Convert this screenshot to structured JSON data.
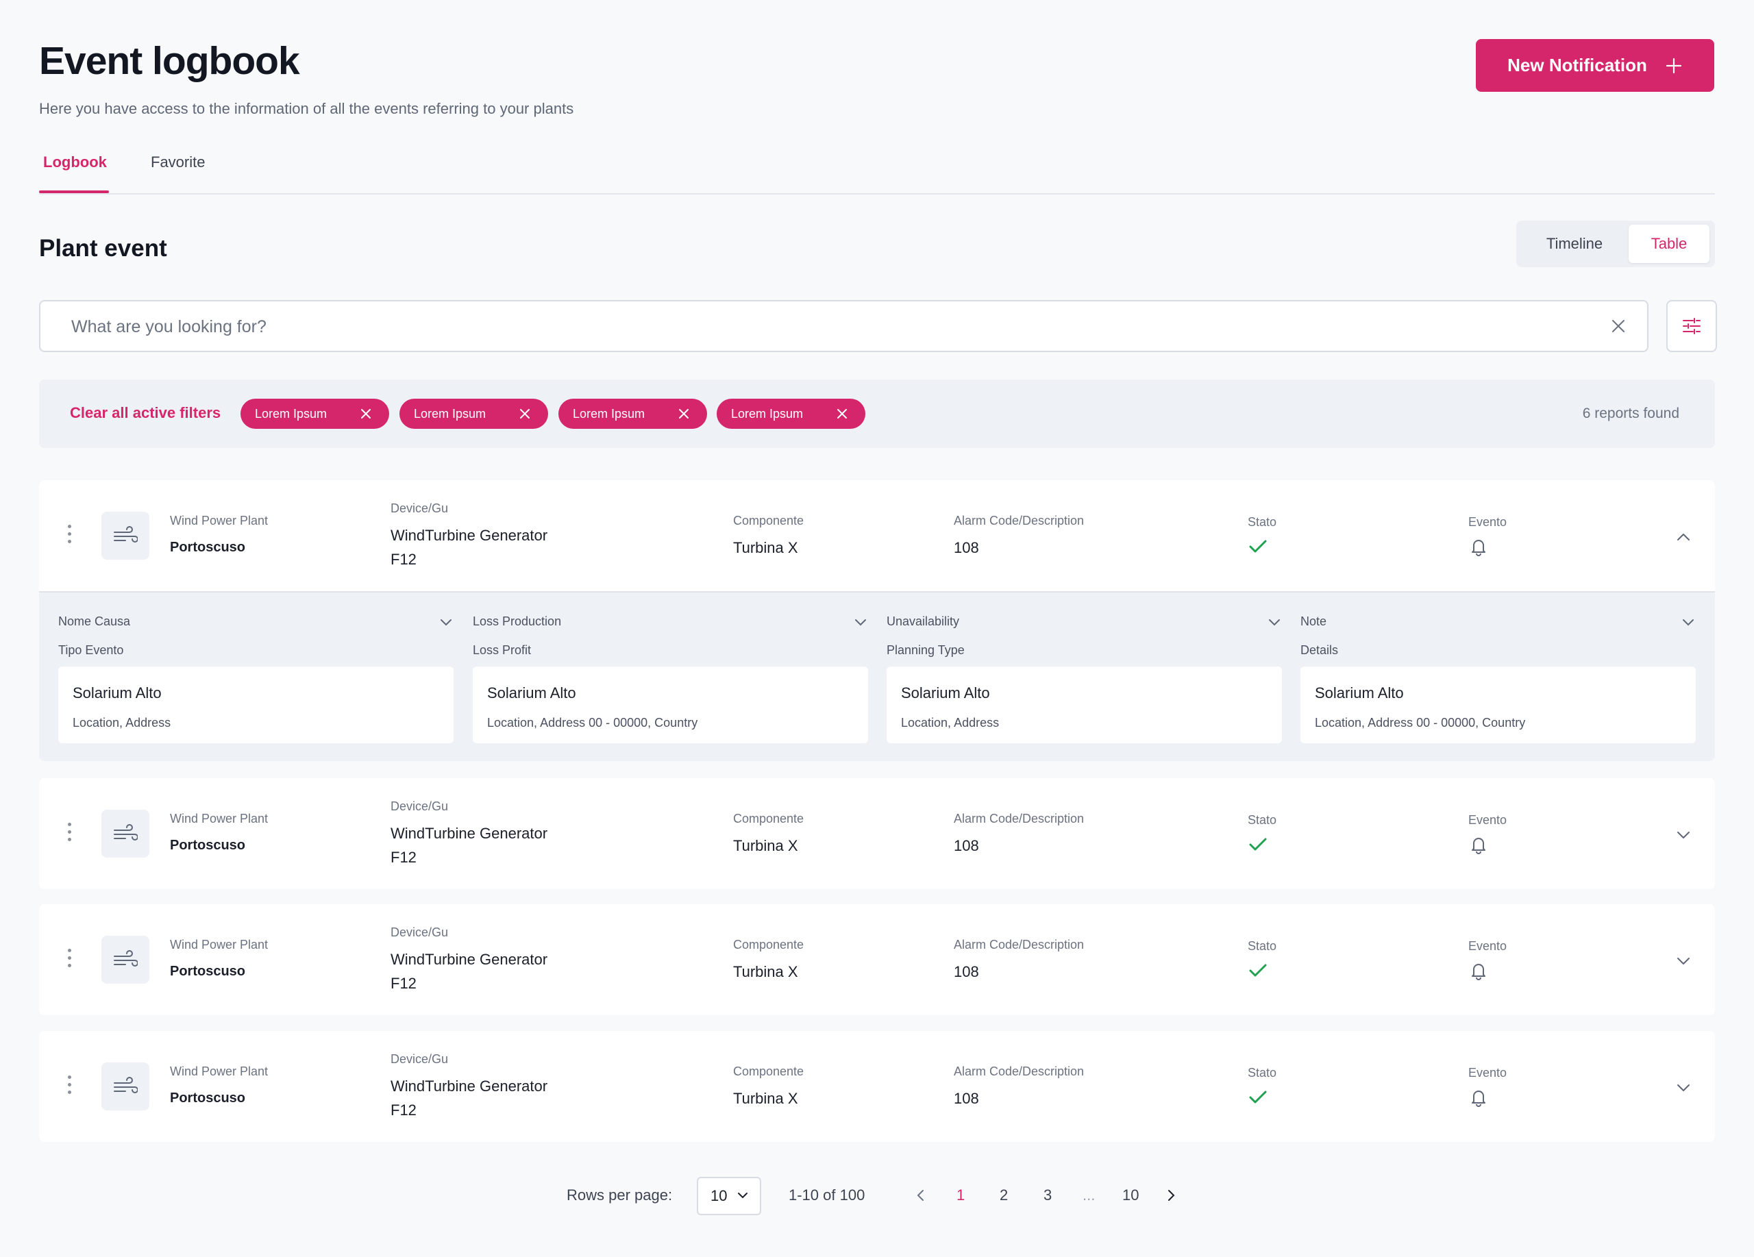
{
  "header": {
    "title": "Event logbook",
    "subtitle": "Here you have access to the information of all the events referring to your plants",
    "new_button_label": "New Notification"
  },
  "tabs": [
    {
      "label": "Logbook",
      "active": true
    },
    {
      "label": "Favorite",
      "active": false
    }
  ],
  "section": {
    "title": "Plant event",
    "view_toggle": [
      {
        "label": "Timeline",
        "active": false
      },
      {
        "label": "Table",
        "active": true
      }
    ]
  },
  "search": {
    "placeholder": "What are you looking for?",
    "value": ""
  },
  "filters": {
    "clear_label": "Clear all active filters",
    "chips": [
      "Lorem Ipsum",
      "Lorem Ipsum",
      "Lorem Ipsum",
      "Lorem Ipsum"
    ],
    "results_text": "6 reports found"
  },
  "columns": {
    "plant": "Wind Power Plant",
    "device": "Device/Gu",
    "component": "Componente",
    "alarm": "Alarm Code/Description",
    "stato": "Stato",
    "evento": "Evento"
  },
  "events": [
    {
      "plant": "Portoscuso",
      "device": "WindTurbine Generator",
      "device_code": "F12",
      "component": "Turbina X",
      "alarm": "108",
      "expanded": true
    },
    {
      "plant": "Portoscuso",
      "device": "WindTurbine Generator",
      "device_code": "F12",
      "component": "Turbina X",
      "alarm": "108",
      "expanded": false
    },
    {
      "plant": "Portoscuso",
      "device": "WindTurbine Generator",
      "device_code": "F12",
      "component": "Turbina X",
      "alarm": "108",
      "expanded": false
    },
    {
      "plant": "Portoscuso",
      "device": "WindTurbine Generator",
      "device_code": "F12",
      "component": "Turbina X",
      "alarm": "108",
      "expanded": false
    }
  ],
  "details": [
    {
      "header": "Nome Causa",
      "sub": "Tipo Evento",
      "title": "Solarium Alto",
      "text": "Location, Address"
    },
    {
      "header": "Loss Production",
      "sub": "Loss Profit",
      "title": "Solarium Alto",
      "text": "Location, Address 00 - 00000, Country"
    },
    {
      "header": "Unavailability",
      "sub": "Planning Type",
      "title": "Solarium Alto",
      "text": "Location, Address"
    },
    {
      "header": "Note",
      "sub": "Details",
      "title": "Solarium Alto",
      "text": "Location, Address 00 - 00000, Country"
    }
  ],
  "pagination": {
    "rows_label": "Rows per page:",
    "rows_value": "10",
    "range": "1-10 of 100",
    "pages": [
      "1",
      "2",
      "3",
      "...",
      "10"
    ],
    "current": "1"
  },
  "colors": {
    "accent": "#d6266b",
    "success": "#1fa152",
    "background": "#f8f9fb"
  },
  "icons": {
    "plant": "wind-icon",
    "stato": "check-icon",
    "evento": "bell-icon",
    "new": "plus-icon",
    "filters": "sliders-icon"
  }
}
